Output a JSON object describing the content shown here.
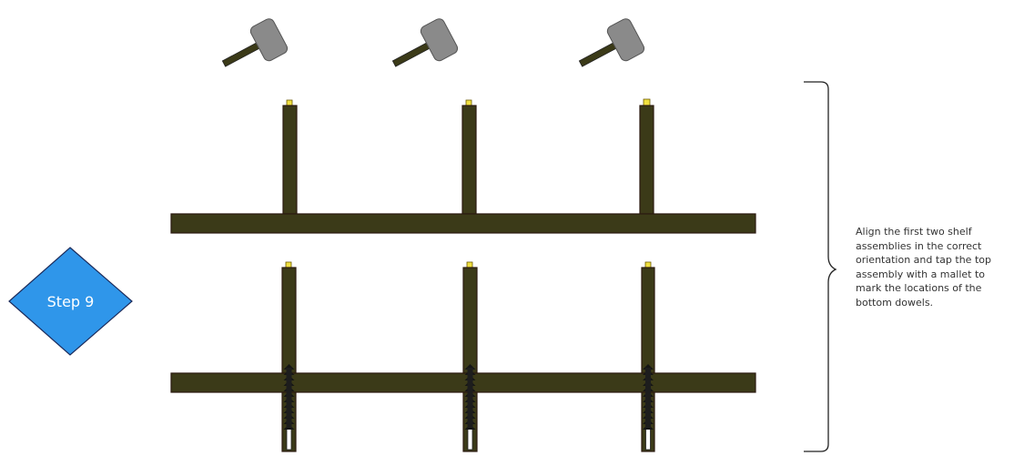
{
  "step": {
    "label": "Step 9"
  },
  "instruction": {
    "text": "Align the first two shelf assemblies in the correct orientation and tap the top assembly with a mallet to mark the locations of the bottom dowels."
  },
  "colors": {
    "wood": "#3b3a18",
    "wood_outline": "#2b1a10",
    "dowel": "#f0e040",
    "mallet_head": "#8a8a8a",
    "mallet_handle": "#3b3a18",
    "diamond": "#2f96ea",
    "diamond_outline": "#1b2a5a",
    "bracket": "#222222"
  },
  "icons": {
    "mallet": "mallet-icon",
    "dowel": "dowel-icon",
    "screw": "screw-icon"
  }
}
